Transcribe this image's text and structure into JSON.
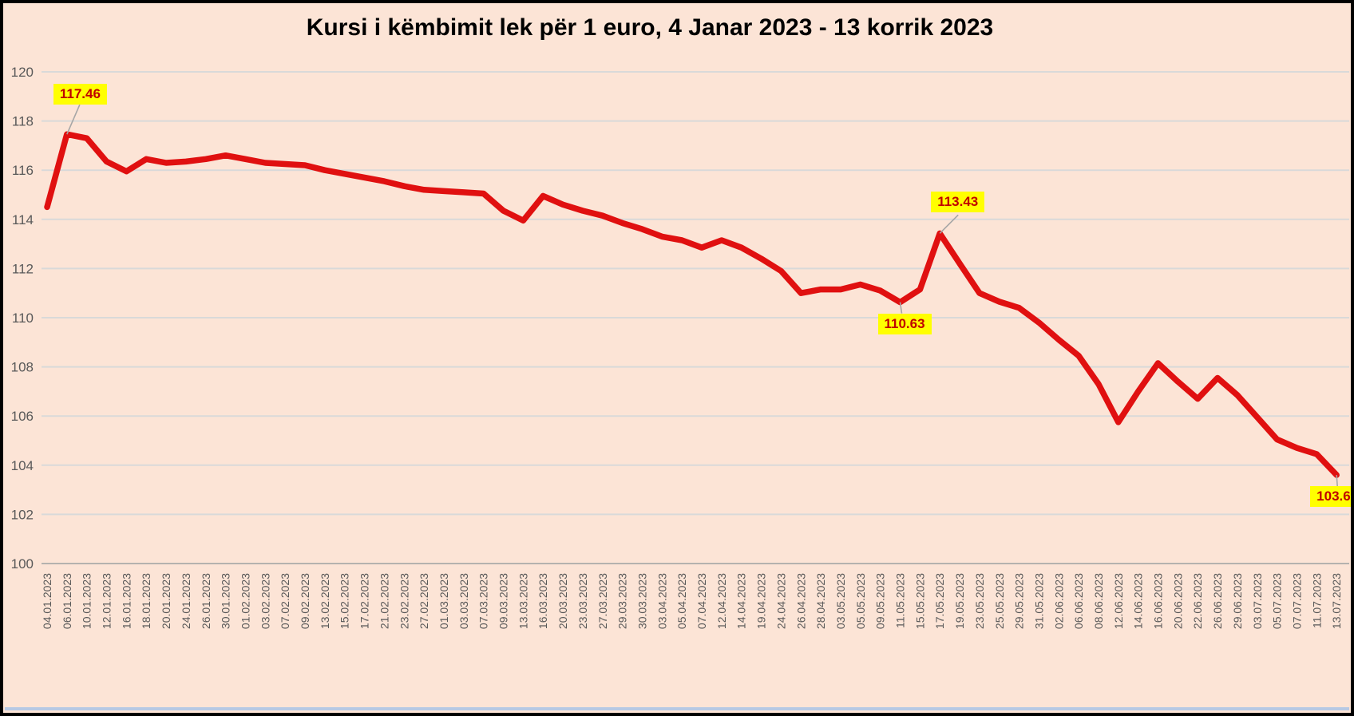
{
  "title": "Kursi i këmbimit lek për 1 euro, 4 Janar 2023 - 13 korrik 2023",
  "chart_data": {
    "type": "line",
    "series_name": "Kursi i këmbimit lek për 1 euro",
    "categories": [
      "04.01.2023",
      "06.01.2023",
      "10.01.2023",
      "12.01.2023",
      "16.01.2023",
      "18.01.2023",
      "20.01.2023",
      "24.01.2023",
      "26.01.2023",
      "30.01.2023",
      "01.02.2023",
      "03.02.2023",
      "07.02.2023",
      "09.02.2023",
      "13.02.2023",
      "15.02.2023",
      "17.02.2023",
      "21.02.2023",
      "23.02.2023",
      "27.02.2023",
      "01.03.2023",
      "03.03.2023",
      "07.03.2023",
      "09.03.2023",
      "13.03.2023",
      "16.03.2023",
      "20.03.2023",
      "23.03.2023",
      "27.03.2023",
      "29.03.2023",
      "30.03.2023",
      "03.04.2023",
      "05.04.2023",
      "07.04.2023",
      "12.04.2023",
      "14.04.2023",
      "19.04.2023",
      "24.04.2023",
      "26.04.2023",
      "28.04.2023",
      "03.05.2023",
      "05.05.2023",
      "09.05.2023",
      "11.05.2023",
      "15.05.2023",
      "17.05.2023",
      "19.05.2023",
      "23.05.2023",
      "25.05.2023",
      "29.05.2023",
      "31.05.2023",
      "02.06.2023",
      "06.06.2023",
      "08.06.2023",
      "12.06.2023",
      "14.06.2023",
      "16.06.2023",
      "20.06.2023",
      "22.06.2023",
      "26.06.2023",
      "29.06.2023",
      "03.07.2023",
      "05.07.2023",
      "07.07.2023",
      "11.07.2023",
      "13.07.2023"
    ],
    "values": [
      114.5,
      117.46,
      117.3,
      116.35,
      115.95,
      116.45,
      116.3,
      116.35,
      116.45,
      116.6,
      116.45,
      116.3,
      116.25,
      116.2,
      116.0,
      115.85,
      115.7,
      115.55,
      115.35,
      115.2,
      115.15,
      115.1,
      115.05,
      114.35,
      113.95,
      114.95,
      114.6,
      114.35,
      114.15,
      113.85,
      113.6,
      113.3,
      113.15,
      112.85,
      113.15,
      112.85,
      112.4,
      111.9,
      111.0,
      111.15,
      111.15,
      111.35,
      111.1,
      110.63,
      111.15,
      113.43,
      112.2,
      111.0,
      110.65,
      110.4,
      109.8,
      109.1,
      108.45,
      107.3,
      105.75,
      107.0,
      108.15,
      107.4,
      106.7,
      107.55,
      106.85,
      105.95,
      105.05,
      104.7,
      104.45,
      103.6
    ],
    "ylim": [
      100,
      120
    ],
    "yticks": [
      100,
      102,
      104,
      106,
      108,
      110,
      112,
      114,
      116,
      118,
      120
    ],
    "grid": true,
    "legend": "none",
    "line_color": "#e01010",
    "background_color": "#fce4d6",
    "gridline_color": "#d9d9d9",
    "tick_label_color": "#595959",
    "callout_bg_color": "#ffff00",
    "callout_text_color": "#c00000",
    "callouts": [
      {
        "label": "117.46",
        "value": 117.46,
        "date": "06.01.2023"
      },
      {
        "label": "110.63",
        "value": 110.63,
        "date": "11.05.2023"
      },
      {
        "label": "113.43",
        "value": 113.43,
        "date": "17.05.2023"
      },
      {
        "label": "103.6",
        "value": 103.6,
        "date": "13.07.2023"
      }
    ]
  }
}
